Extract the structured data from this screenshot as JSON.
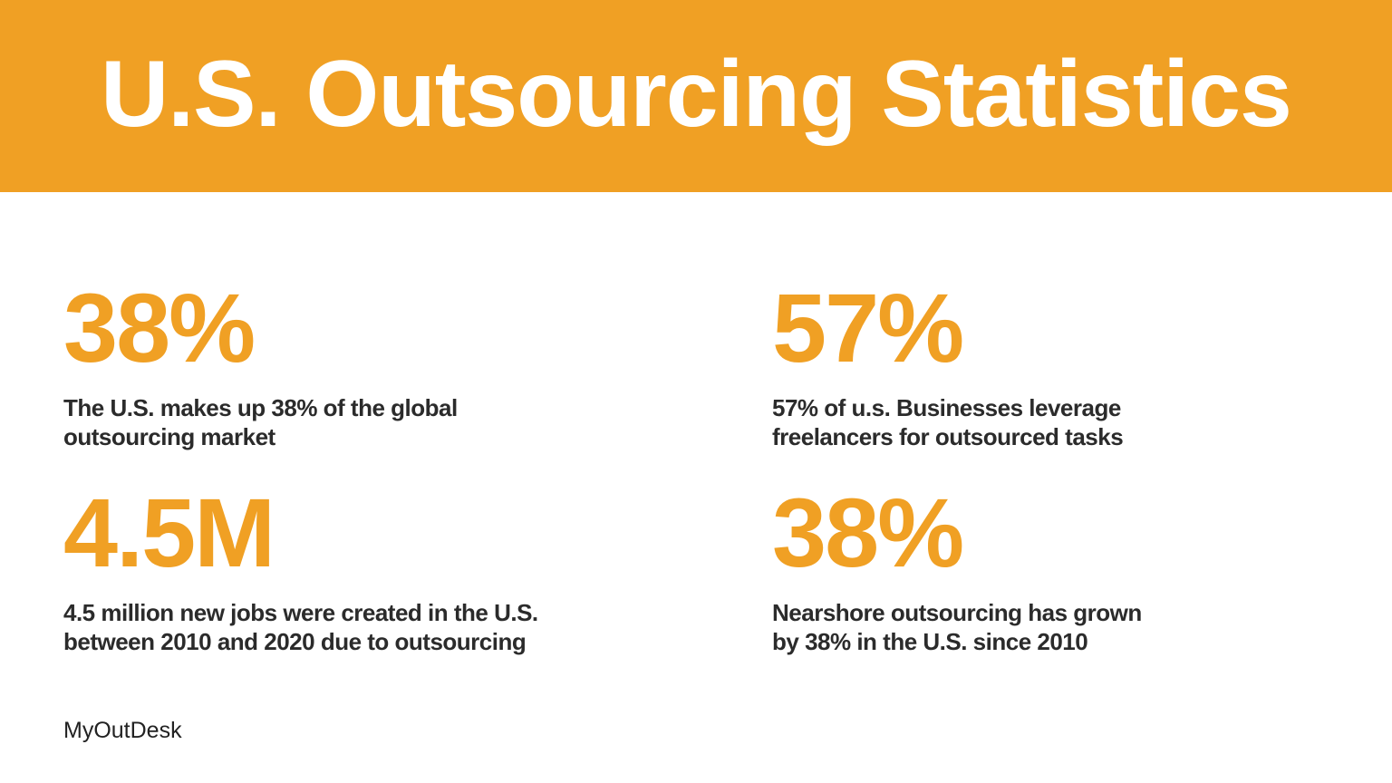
{
  "header": {
    "title": "U.S. Outsourcing Statistics"
  },
  "stats": [
    {
      "figure": "38%",
      "lines": [
        "The U.S. makes up 38% of the global",
        "outsourcing market"
      ]
    },
    {
      "figure": "57%",
      "lines": [
        "57% of u.s. Businesses leverage",
        "freelancers for outsourced tasks"
      ]
    },
    {
      "figure": "4.5M",
      "lines": [
        "4.5 million new jobs were created in the U.S.",
        "between 2010 and 2020 due to outsourcing"
      ]
    },
    {
      "figure": "38%",
      "lines": [
        "Nearshore outsourcing has grown",
        "by 38% in the U.S. since 2010"
      ]
    }
  ],
  "footer": {
    "brand": "MyOutDesk"
  }
}
